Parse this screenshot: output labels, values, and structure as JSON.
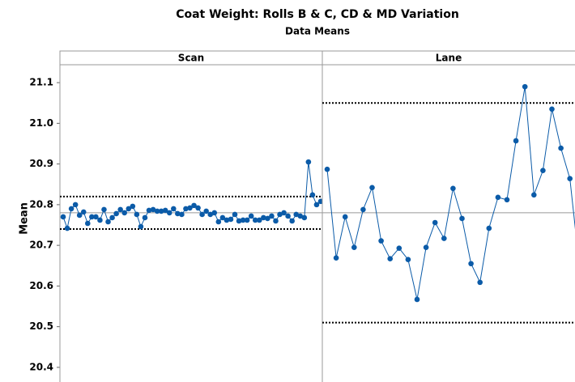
{
  "chart_data": {
    "type": "line",
    "title": "Coat Weight: Rolls B & C, CD & MD Variation",
    "subtitle": "Data Means",
    "ylabel": "Mean",
    "ylim": [
      20.364,
      21.144
    ],
    "yticks": [
      20.4,
      20.5,
      20.6,
      20.7,
      20.8,
      20.9,
      {
        "value": 21,
        "label": "21.0"
      },
      21.1
    ],
    "color": "#0b5ba8",
    "panels": [
      {
        "name": "Scan",
        "center": 20.78,
        "upper": 20.82,
        "lower": 20.74,
        "values": [
          20.77,
          20.742,
          20.79,
          20.8,
          20.774,
          20.782,
          20.754,
          20.77,
          20.77,
          20.762,
          20.788,
          20.758,
          20.768,
          20.778,
          20.788,
          20.78,
          20.79,
          20.796,
          20.776,
          20.746,
          20.768,
          20.786,
          20.788,
          20.784,
          20.784,
          20.786,
          20.78,
          20.79,
          20.778,
          20.776,
          20.79,
          20.792,
          20.798,
          20.792,
          20.776,
          20.784,
          20.776,
          20.78,
          20.758,
          20.768,
          20.762,
          20.764,
          20.776,
          20.76,
          20.762,
          20.762,
          20.772,
          20.762,
          20.762,
          20.768,
          20.766,
          20.772,
          20.76,
          20.776,
          20.78,
          20.772,
          20.76,
          20.776,
          20.772,
          20.768,
          20.905,
          20.824,
          20.8,
          20.808
        ]
      },
      {
        "name": "Lane",
        "center": 20.78,
        "upper": 21.05,
        "lower": 20.51,
        "values": [
          20.887,
          20.669,
          20.77,
          20.695,
          20.788,
          20.842,
          20.711,
          20.667,
          20.693,
          20.665,
          20.567,
          20.695,
          20.756,
          20.717,
          20.84,
          20.766,
          20.655,
          20.609,
          20.742,
          20.818,
          20.812,
          20.957,
          21.09,
          20.824,
          20.884,
          21.035,
          20.939,
          20.864,
          20.66
        ]
      }
    ]
  }
}
